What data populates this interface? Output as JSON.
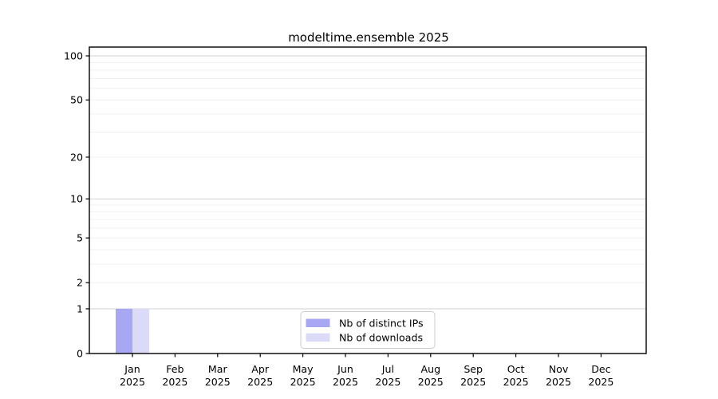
{
  "chart_data": {
    "type": "bar",
    "title": "modeltime.ensemble 2025",
    "categories": [
      "Jan",
      "Feb",
      "Mar",
      "Apr",
      "May",
      "Jun",
      "Jul",
      "Aug",
      "Sep",
      "Oct",
      "Nov",
      "Dec"
    ],
    "category_year": "2025",
    "series": [
      {
        "name": "Nb of distinct IPs",
        "color": "#a7a7f4",
        "values": [
          1,
          0,
          0,
          0,
          0,
          0,
          0,
          0,
          0,
          0,
          0,
          0
        ]
      },
      {
        "name": "Nb of downloads",
        "color": "#dbdbf7",
        "values": [
          1,
          0,
          0,
          0,
          0,
          0,
          0,
          0,
          0,
          0,
          0,
          0
        ]
      }
    ],
    "xlabel": "",
    "ylabel": "",
    "yscale": "log1p",
    "ylim": [
      0,
      111
    ],
    "yticks": [
      100,
      50,
      20,
      10,
      5,
      2,
      1,
      0
    ],
    "major_grid_values": [
      1,
      10,
      100
    ],
    "minor_grid_values": [
      2,
      3,
      4,
      5,
      6,
      7,
      8,
      9,
      20,
      30,
      40,
      50,
      60,
      70,
      80,
      90
    ],
    "grid": true,
    "legend_position": "bottom-center"
  },
  "colors": {
    "axis": "#000000",
    "major_grid": "#d2d2d2",
    "minor_grid": "#f0f0f0",
    "legend_border": "#cccccc",
    "legend_background": "#ffffff",
    "text": "#000000"
  }
}
